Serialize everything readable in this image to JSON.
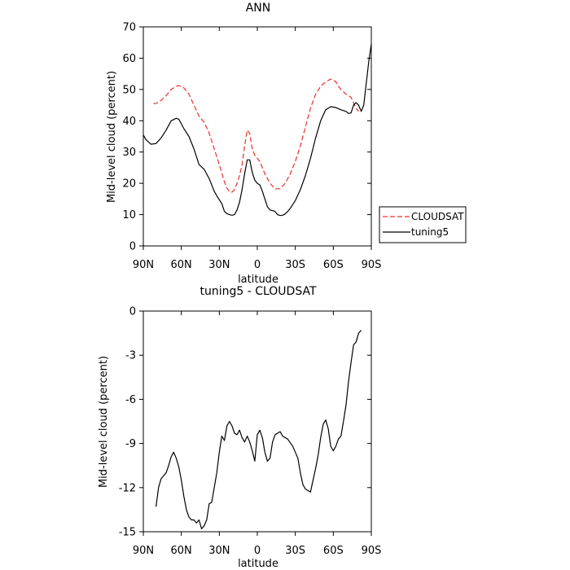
{
  "chart_data": [
    {
      "type": "line",
      "title": "ANN",
      "xlabel": "latitude",
      "ylabel": "Mid-level cloud (percent)",
      "xlim": [
        90,
        -90
      ],
      "ylim": [
        0,
        70
      ],
      "x_ticks": [
        90,
        60,
        30,
        0,
        -30,
        -60,
        -90
      ],
      "x_tick_labels": [
        "90N",
        "60N",
        "30N",
        "0",
        "30S",
        "60S",
        "90S"
      ],
      "y_ticks": [
        0,
        10,
        20,
        30,
        40,
        50,
        60,
        70
      ],
      "y_tick_labels": [
        "0",
        "10",
        "20",
        "30",
        "40",
        "50",
        "60",
        "70"
      ],
      "grid": false,
      "legend": "right",
      "series": [
        {
          "name": "CLOUDSAT",
          "color": "#e8302a",
          "dash": "dashed",
          "x": [
            82,
            80,
            76,
            72,
            68,
            64,
            62,
            58,
            54,
            50,
            46,
            42,
            38,
            34,
            30,
            26,
            24,
            22,
            20,
            18,
            16,
            14,
            12,
            10,
            8,
            6,
            4,
            2,
            0,
            -2,
            -6,
            -10,
            -14,
            -18,
            -22,
            -26,
            -30,
            -34,
            -38,
            -42,
            -46,
            -50,
            -54,
            -58,
            -62,
            -64,
            -66,
            -70,
            -74,
            -78,
            -80
          ],
          "y": [
            45.5,
            45.5,
            46.5,
            48,
            50,
            51,
            51.2,
            50.5,
            48.5,
            45,
            41.5,
            39.5,
            36,
            31,
            26,
            20.5,
            18.5,
            17.3,
            17.2,
            18,
            20,
            22.5,
            26,
            32,
            37,
            36,
            31,
            29,
            28,
            27,
            23,
            20,
            18.2,
            18.3,
            20,
            23,
            27,
            32,
            38,
            44,
            48.5,
            51,
            52.5,
            53.3,
            52.5,
            51,
            50,
            48.5,
            47.5,
            44,
            43
          ]
        },
        {
          "name": "tuning5",
          "color": "#000000",
          "dash": "solid",
          "x": [
            90,
            88,
            84,
            80,
            76,
            72,
            68,
            64,
            62,
            58,
            54,
            50,
            46,
            42,
            38,
            34,
            32,
            28,
            26,
            24,
            22,
            20,
            18,
            16,
            14,
            12,
            10,
            8,
            6,
            4,
            2,
            0,
            -2,
            -4,
            -6,
            -8,
            -10,
            -12,
            -14,
            -16,
            -18,
            -20,
            -22,
            -24,
            -26,
            -30,
            -34,
            -38,
            -42,
            -46,
            -50,
            -54,
            -58,
            -62,
            -66,
            -70,
            -72,
            -74,
            -76,
            -78,
            -80,
            -82,
            -84,
            -86,
            -88,
            -90
          ],
          "y": [
            35.5,
            34,
            32.5,
            32.7,
            34.5,
            37,
            40,
            40.8,
            40.5,
            37.5,
            35,
            31,
            26,
            24.5,
            21.5,
            17.5,
            16,
            13.5,
            11,
            10.3,
            10,
            9.8,
            10,
            11.5,
            14,
            18,
            23,
            27.5,
            27.5,
            23.5,
            21,
            20,
            19.5,
            17.5,
            15,
            12.5,
            11.5,
            11.3,
            11,
            10,
            9.7,
            9.8,
            10.2,
            11,
            12,
            14.5,
            18,
            22.5,
            28,
            34.5,
            40,
            43.5,
            44.5,
            44.2,
            43.5,
            43,
            42.3,
            42.5,
            45,
            45.8,
            45,
            43,
            45,
            52,
            59,
            64.5
          ]
        }
      ]
    },
    {
      "type": "line",
      "title": "tuning5 - CLOUDSAT",
      "xlabel": "latitude",
      "ylabel": "Mid-level cloud (percent)",
      "xlim": [
        90,
        -90
      ],
      "ylim": [
        -15,
        0
      ],
      "x_ticks": [
        90,
        60,
        30,
        0,
        -30,
        -60,
        -90
      ],
      "x_tick_labels": [
        "90N",
        "60N",
        "30N",
        "0",
        "30S",
        "60S",
        "90S"
      ],
      "y_ticks": [
        0,
        -3,
        -6,
        -9,
        -12,
        -15
      ],
      "y_tick_labels": [
        "0",
        "-3",
        "-6",
        "-9",
        "-12",
        "-15"
      ],
      "grid": false,
      "series": [
        {
          "color": "#000000",
          "dash": "solid",
          "x": [
            80,
            78,
            76,
            74,
            72,
            70,
            68,
            66,
            64,
            62,
            60,
            58,
            56,
            54,
            52,
            50,
            48,
            46,
            44,
            42,
            40,
            38,
            36,
            34,
            32,
            30,
            28,
            26,
            24,
            22,
            20,
            18,
            16,
            14,
            12,
            10,
            8,
            6,
            4,
            2,
            0,
            -2,
            -4,
            -6,
            -8,
            -10,
            -12,
            -14,
            -16,
            -18,
            -20,
            -24,
            -28,
            -32,
            -34,
            -36,
            -38,
            -40,
            -42,
            -44,
            -46,
            -48,
            -50,
            -52,
            -54,
            -56,
            -58,
            -60,
            -62,
            -64,
            -66,
            -68,
            -70,
            -72,
            -74,
            -76,
            -78,
            -80,
            -82
          ],
          "y": [
            -13.3,
            -12,
            -11.4,
            -11.2,
            -11,
            -10.5,
            -9.9,
            -9.6,
            -10,
            -10.6,
            -11.5,
            -12.6,
            -13.5,
            -14,
            -14.2,
            -14.2,
            -14.4,
            -14.2,
            -14.8,
            -14.6,
            -14.2,
            -13.1,
            -13,
            -12,
            -11,
            -9.6,
            -8.5,
            -8.8,
            -7.8,
            -7.5,
            -7.8,
            -8.3,
            -8.4,
            -8.1,
            -8.6,
            -8.9,
            -8.5,
            -8.9,
            -9.5,
            -10.2,
            -8.4,
            -8.1,
            -8.6,
            -9.6,
            -10.2,
            -10.0,
            -8.9,
            -8.4,
            -8.3,
            -8.2,
            -8.5,
            -8.7,
            -9.2,
            -10.0,
            -11,
            -11.8,
            -12.1,
            -12.2,
            -12.3,
            -11.5,
            -10.7,
            -9.8,
            -8.6,
            -7.7,
            -7.4,
            -8.0,
            -9.2,
            -9.5,
            -9.2,
            -8.7,
            -8.5,
            -7.5,
            -6.4,
            -4.8,
            -3.5,
            -2.3,
            -2.1,
            -1.5,
            -1.3
          ]
        }
      ]
    }
  ]
}
